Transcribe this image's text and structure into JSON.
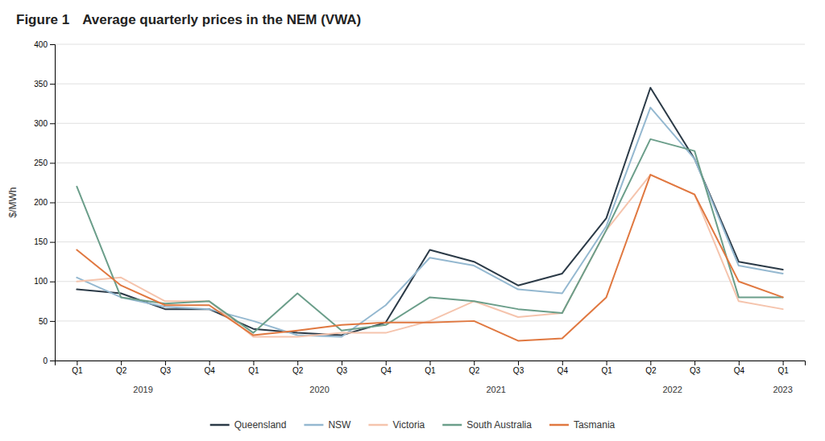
{
  "chart_data": {
    "type": "line",
    "figure_label": "Figure 1",
    "title": "Average quarterly prices in the NEM (VWA)",
    "ylabel": "$/MWh",
    "categories": [
      "Q1",
      "Q2",
      "Q3",
      "Q4",
      "Q1",
      "Q2",
      "Q3",
      "Q4",
      "Q1",
      "Q2",
      "Q3",
      "Q4",
      "Q1",
      "Q2",
      "Q3",
      "Q4",
      "Q1"
    ],
    "annotations": [
      {
        "text": "2019",
        "x": 1.5
      },
      {
        "text": "2020",
        "x": 5.5
      },
      {
        "text": "2021",
        "x": 9.5
      },
      {
        "text": "2022",
        "x": 13.5
      },
      {
        "text": "2023",
        "x": 16.0
      }
    ],
    "series": [
      {
        "name": "Queensland",
        "color": "#2B3A47",
        "values": [
          90,
          85,
          65,
          65,
          40,
          35,
          32,
          48,
          140,
          125,
          95,
          110,
          180,
          345,
          255,
          125,
          115
        ]
      },
      {
        "name": "NSW",
        "color": "#94B8D0",
        "values": [
          105,
          80,
          68,
          65,
          50,
          32,
          30,
          70,
          130,
          120,
          90,
          85,
          170,
          320,
          255,
          120,
          110
        ]
      },
      {
        "name": "Victoria",
        "color": "#F5C4AD",
        "values": [
          100,
          105,
          75,
          75,
          30,
          30,
          35,
          35,
          50,
          75,
          55,
          60,
          165,
          235,
          210,
          75,
          65
        ]
      },
      {
        "name": "South Australia",
        "color": "#6B9E8A",
        "values": [
          220,
          80,
          72,
          75,
          35,
          85,
          38,
          45,
          80,
          75,
          65,
          60,
          165,
          280,
          265,
          80,
          80
        ]
      },
      {
        "name": "Tasmania",
        "color": "#E07840",
        "values": [
          140,
          95,
          70,
          70,
          32,
          38,
          45,
          48,
          48,
          50,
          25,
          28,
          80,
          235,
          210,
          100,
          80
        ]
      }
    ],
    "ylim": [
      0,
      400
    ],
    "yticks": [
      0,
      50,
      100,
      150,
      200,
      250,
      300,
      350,
      400
    ],
    "grid": true,
    "legend": "bottom"
  }
}
